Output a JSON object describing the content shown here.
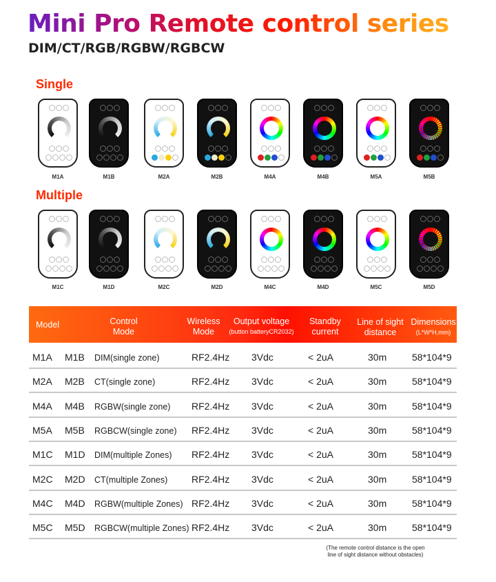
{
  "title": "Mini Pro Remote control series",
  "subtitle": "DIM/CT/RGB/RGBW/RGBCW",
  "sections": {
    "single": "Single",
    "multiple": "Multiple"
  },
  "remotes_single": [
    {
      "label": "M1A",
      "body": "white",
      "ring": "dim"
    },
    {
      "label": "M1B",
      "body": "black",
      "ring": "dim"
    },
    {
      "label": "M2A",
      "body": "white",
      "ring": "ct"
    },
    {
      "label": "M2B",
      "body": "black",
      "ring": "ct"
    },
    {
      "label": "M4A",
      "body": "white",
      "ring": "rgb"
    },
    {
      "label": "M4B",
      "body": "black",
      "ring": "rgb"
    },
    {
      "label": "M5A",
      "body": "white",
      "ring": "rgb"
    },
    {
      "label": "M5B",
      "body": "black",
      "ring": "rgbdots"
    }
  ],
  "remotes_multiple": [
    {
      "label": "M1C",
      "body": "white",
      "ring": "dim"
    },
    {
      "label": "M1D",
      "body": "black",
      "ring": "dim"
    },
    {
      "label": "M2C",
      "body": "white",
      "ring": "ct"
    },
    {
      "label": "M2D",
      "body": "black",
      "ring": "ct"
    },
    {
      "label": "M4C",
      "body": "white",
      "ring": "rgb"
    },
    {
      "label": "M4D",
      "body": "black",
      "ring": "rgb"
    },
    {
      "label": "M5C",
      "body": "white",
      "ring": "rgb"
    },
    {
      "label": "M5D",
      "body": "black",
      "ring": "rgbdots"
    }
  ],
  "table": {
    "headers": {
      "model": "Model",
      "control_mode": [
        "Control",
        "Mode"
      ],
      "wireless_mode": [
        "Wireless",
        "Mode"
      ],
      "output_voltage": [
        "Output voltage",
        "(button batteryCR2032)"
      ],
      "standby_current": [
        "Standby",
        "current"
      ],
      "line_of_sight": [
        "Line of sight",
        "distance"
      ],
      "dimensions": [
        "Dimensions",
        "(L*W*H,mm)"
      ]
    },
    "rows": [
      {
        "model_a": "M1A",
        "model_b": "M1B",
        "mode": "DIM(single  zone)",
        "wireless": "RF2.4Hz",
        "voltage": "3Vdc",
        "standby": "< 2uA",
        "distance": "30m",
        "dimensions": "58*104*9"
      },
      {
        "model_a": "M2A",
        "model_b": "M2B",
        "mode": "CT(single zone)",
        "wireless": "RF2.4Hz",
        "voltage": "3Vdc",
        "standby": "< 2uA",
        "distance": "30m",
        "dimensions": "58*104*9"
      },
      {
        "model_a": "M4A",
        "model_b": "M4B",
        "mode": "RGBW(single zone)",
        "wireless": "RF2.4Hz",
        "voltage": "3Vdc",
        "standby": "< 2uA",
        "distance": "30m",
        "dimensions": "58*104*9"
      },
      {
        "model_a": "M5A",
        "model_b": "M5B",
        "mode": "RGBCW(single zone)",
        "wireless": "RF2.4Hz",
        "voltage": "3Vdc",
        "standby": "< 2uA",
        "distance": "30m",
        "dimensions": "58*104*9"
      },
      {
        "model_a": "M1C",
        "model_b": "M1D",
        "mode": "DIM(multiple Zones)",
        "wireless": "RF2.4Hz",
        "voltage": "3Vdc",
        "standby": "< 2uA",
        "distance": "30m",
        "dimensions": "58*104*9"
      },
      {
        "model_a": "M2C",
        "model_b": "M2D",
        "mode": "CT(multiple Zones)",
        "wireless": "RF2.4Hz",
        "voltage": "3Vdc",
        "standby": "< 2uA",
        "distance": "30m",
        "dimensions": "58*104*9"
      },
      {
        "model_a": "M4C",
        "model_b": "M4D",
        "mode": "RGBW(multiple Zones)",
        "wireless": "RF2.4Hz",
        "voltage": "3Vdc",
        "standby": "< 2uA",
        "distance": "30m",
        "dimensions": "58*104*9"
      },
      {
        "model_a": "M5C",
        "model_b": "M5D",
        "mode": "RGBCW(multiple Zones)",
        "wireless": "RF2.4Hz",
        "voltage": "3Vdc",
        "standby": "< 2uA",
        "distance": "30m",
        "dimensions": "58*104*9"
      }
    ]
  },
  "note": [
    "(The remote control distance is the open",
    "line of sight distance without obstacles)"
  ],
  "colors": {
    "accent": "#ff2a00",
    "header_start": "#ff6a10",
    "header_mid": "#ff1000"
  }
}
